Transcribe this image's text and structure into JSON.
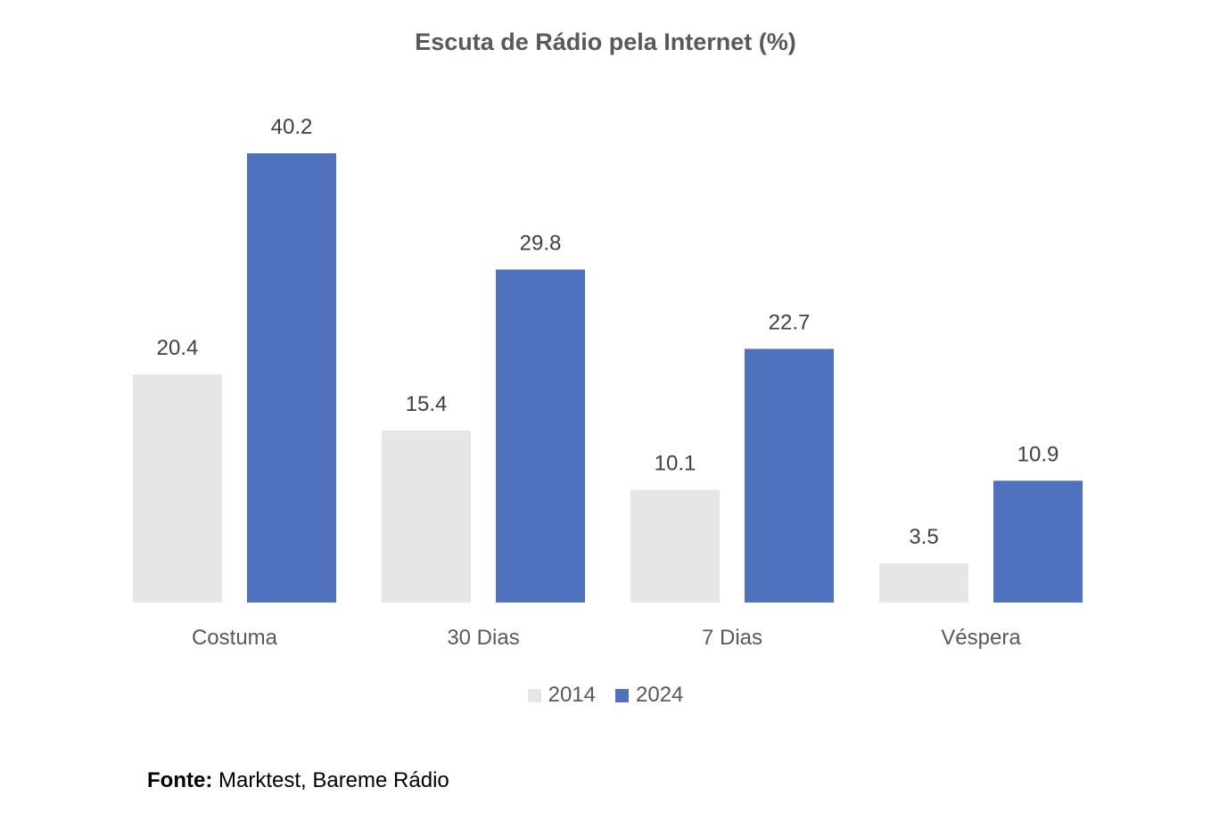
{
  "chart_data": {
    "type": "bar",
    "title": "Escuta de Rádio pela Internet (%)",
    "categories": [
      "Costuma",
      "30 Dias",
      "7 Dias",
      "Véspera"
    ],
    "series": [
      {
        "name": "2014",
        "values": [
          20.4,
          15.4,
          10.1,
          3.5
        ],
        "color": "#e7e6e6"
      },
      {
        "name": "2024",
        "values": [
          40.2,
          29.8,
          22.7,
          10.9
        ],
        "color": "#4f71be"
      }
    ],
    "ylim": [
      0,
      40.2
    ],
    "grid": false,
    "legend": "bottom",
    "data_labels": true
  },
  "source": {
    "label": "Fonte:",
    "text": " Marktest, Bareme Rádio"
  }
}
